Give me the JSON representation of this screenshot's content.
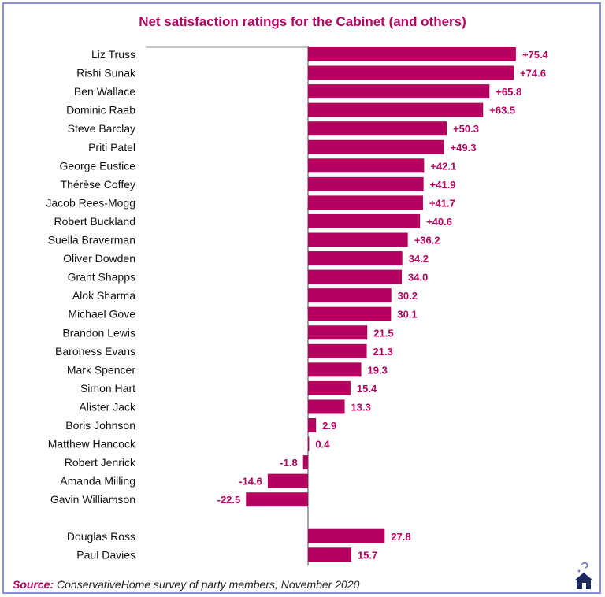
{
  "chart_data": {
    "type": "bar",
    "orientation": "horizontal",
    "title": "Net satisfaction ratings for the Cabinet (and others)",
    "xlabel": "",
    "ylabel": "",
    "xlim": [
      -35,
      100
    ],
    "grid": false,
    "legend": "none",
    "bar_color": "#b5005f",
    "label_color": "#b5005f",
    "categories": [
      "Liz Truss",
      "Rishi Sunak",
      "Ben Wallace",
      "Dominic Raab",
      "Steve Barclay",
      "Priti Patel",
      "George Eustice",
      "Thérèse Coffey",
      "Jacob Rees-Mogg",
      "Robert Buckland",
      "Suella Braverman",
      "Oliver Dowden",
      "Grant Shapps",
      "Alok Sharma",
      "Michael Gove",
      "Brandon Lewis",
      "Baroness Evans",
      "Mark Spencer",
      "Simon Hart",
      "Alister Jack",
      "Boris Johnson",
      "Matthew Hancock",
      "Robert Jenrick",
      "Amanda Milling",
      "Gavin Williamson",
      "Douglas Ross",
      "Paul Davies"
    ],
    "values": [
      75.4,
      74.6,
      65.8,
      63.5,
      50.3,
      49.3,
      42.1,
      41.9,
      41.7,
      40.6,
      36.2,
      34.2,
      34.0,
      30.2,
      30.1,
      21.5,
      21.3,
      19.3,
      15.4,
      13.3,
      2.9,
      0.4,
      -1.8,
      -14.6,
      -22.5,
      27.8,
      15.7
    ],
    "value_labels": [
      "+75.4",
      "+74.6",
      "+65.8",
      "+63.5",
      "+50.3",
      "+49.3",
      "+42.1",
      "+41.9",
      "+41.7",
      "+40.6",
      "+36.2",
      "34.2",
      "34.0",
      "30.2",
      "30.1",
      "21.5",
      "21.3",
      "19.3",
      "15.4",
      "13.3",
      "2.9",
      "0.4",
      "-1.8",
      "-14.6",
      "-22.5",
      "27.8",
      "15.7"
    ]
  },
  "footer": {
    "source_label": "Source:",
    "source_text": "ConservativeHome survey of party members, November 2020"
  },
  "logo": {
    "icon": "house-icon"
  }
}
